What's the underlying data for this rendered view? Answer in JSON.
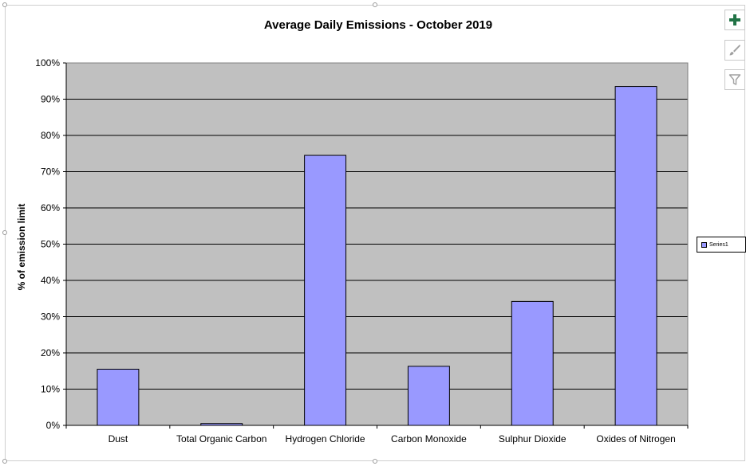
{
  "chart_data": {
    "type": "bar",
    "title": "Average Daily Emissions - October 2019",
    "xlabel": "",
    "ylabel": "% of emission limit",
    "categories": [
      "Dust",
      "Total Organic Carbon",
      "Hydrogen Chloride",
      "Carbon Monoxide",
      "Sulphur Dioxide",
      "Oxides of Nitrogen"
    ],
    "series": [
      {
        "name": "Series1",
        "values": [
          15.5,
          0.5,
          74.5,
          16.3,
          34.2,
          93.5
        ]
      }
    ],
    "ylim": [
      0,
      100
    ],
    "yticks": [
      0,
      10,
      20,
      30,
      40,
      50,
      60,
      70,
      80,
      90,
      100
    ],
    "ytick_labels": [
      "0%",
      "10%",
      "20%",
      "30%",
      "40%",
      "50%",
      "60%",
      "70%",
      "80%",
      "90%",
      "100%"
    ],
    "grid": true,
    "legend_position": "right",
    "colors": {
      "bar_fill": "#9999ff",
      "bar_stroke": "#000000",
      "plot_background": "#c0c0c0",
      "gridline": "#000000"
    }
  },
  "toolbar": {
    "buttons": [
      {
        "icon": "plus-icon",
        "tooltip": ""
      },
      {
        "icon": "brush-icon",
        "tooltip": ""
      },
      {
        "icon": "filter-icon",
        "tooltip": ""
      }
    ],
    "colors": {
      "plus": "#217346",
      "muted": "#a0a0a0"
    }
  }
}
